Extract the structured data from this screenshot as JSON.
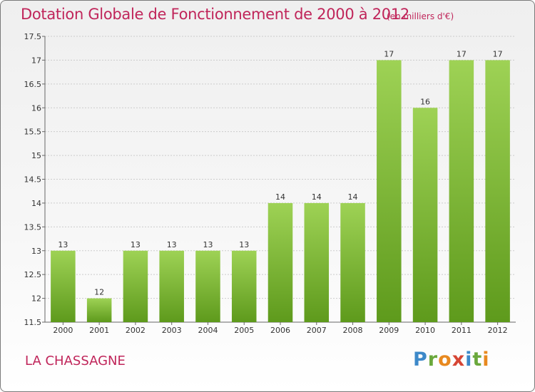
{
  "header": {
    "title": "Dotation Globale de Fonctionnement de 2000 à 2012",
    "unit": "(en milliers d'€)"
  },
  "footer": {
    "commune": "LA CHASSAGNE",
    "brand": "Proxiti",
    "brand_parts": [
      "P",
      "r",
      "o",
      "x",
      "i",
      "t",
      "i"
    ]
  },
  "colors": {
    "title": "#c0255a",
    "bar_top": "#9ed255",
    "bar_bottom": "#5e9a1c",
    "grid": "#cccccc"
  },
  "chart_data": {
    "type": "bar",
    "title": "Dotation Globale de Fonctionnement de 2000 à 2012",
    "subtitle": "(en milliers d'€)",
    "categories": [
      "2000",
      "2001",
      "2002",
      "2003",
      "2004",
      "2005",
      "2006",
      "2007",
      "2008",
      "2009",
      "2010",
      "2011",
      "2012"
    ],
    "values": [
      13,
      12,
      13,
      13,
      13,
      13,
      14,
      14,
      14,
      17,
      16,
      17,
      17
    ],
    "ylim": [
      11.5,
      17.5
    ],
    "yticks": [
      "11.5",
      "12",
      "12.5",
      "13",
      "13.5",
      "14",
      "14.5",
      "15",
      "15.5",
      "16",
      "16.5",
      "17",
      "17.5"
    ],
    "grid": true,
    "legend": "none"
  }
}
